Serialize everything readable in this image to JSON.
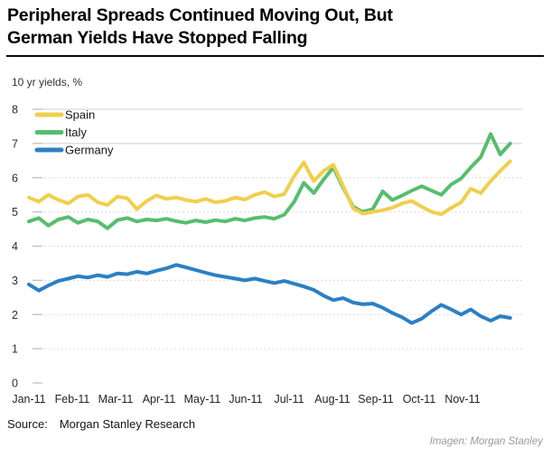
{
  "header": {
    "title_line1": "Peripheral Spreads Continued Moving Out, But",
    "title_line2": "German Yields Have Stopped Falling"
  },
  "chart_data": {
    "type": "line",
    "title": "Peripheral Spreads Continued Moving Out, But German Yields Have Stopped Falling",
    "ylabel": "10 yr yields, %",
    "xlabel": "",
    "ylim": [
      0,
      8
    ],
    "yticks": [
      0,
      1,
      2,
      3,
      4,
      5,
      6,
      7,
      8
    ],
    "grid": "horizontal, light gray, dotted (solid at 7 and 8)",
    "legend_position": "top-left",
    "x_tick_labels": [
      "Jan-11",
      "Feb-11",
      "Mar-11",
      "Apr-11",
      "May-11",
      "Jun-11",
      "Jul-11",
      "Aug-11",
      "Sep-11",
      "Oct-11",
      "Nov-11"
    ],
    "x_unit": "months since Jan-2011 tick",
    "x_months": [
      0,
      0.23,
      0.45,
      0.68,
      0.91,
      1.13,
      1.36,
      1.59,
      1.81,
      2.04,
      2.27,
      2.49,
      2.72,
      2.94,
      3.17,
      3.4,
      3.62,
      3.85,
      4.08,
      4.3,
      4.53,
      4.76,
      4.98,
      5.21,
      5.44,
      5.66,
      5.89,
      6.12,
      6.34,
      6.57,
      6.8,
      7.02,
      7.25,
      7.48,
      7.7,
      7.93,
      8.16,
      8.38,
      8.61,
      8.83,
      9.06,
      9.29,
      9.51,
      9.74,
      9.97,
      10.19,
      10.42,
      10.65,
      10.87,
      11.1
    ],
    "series": [
      {
        "name": "Spain",
        "color": "#F0CF4D",
        "values": [
          5.42,
          5.3,
          5.5,
          5.35,
          5.25,
          5.45,
          5.5,
          5.28,
          5.2,
          5.45,
          5.4,
          5.08,
          5.32,
          5.48,
          5.38,
          5.42,
          5.35,
          5.3,
          5.38,
          5.28,
          5.32,
          5.42,
          5.36,
          5.5,
          5.58,
          5.45,
          5.52,
          6.05,
          6.45,
          5.9,
          6.2,
          6.38,
          5.75,
          5.1,
          4.95,
          5.0,
          5.05,
          5.12,
          5.25,
          5.32,
          5.15,
          5.0,
          4.93,
          5.12,
          5.28,
          5.68,
          5.55,
          5.9,
          6.2,
          6.48
        ]
      },
      {
        "name": "Italy",
        "color": "#56BE6E",
        "values": [
          4.72,
          4.82,
          4.6,
          4.78,
          4.85,
          4.68,
          4.78,
          4.72,
          4.52,
          4.76,
          4.82,
          4.72,
          4.78,
          4.75,
          4.8,
          4.73,
          4.68,
          4.75,
          4.7,
          4.76,
          4.72,
          4.8,
          4.75,
          4.82,
          4.85,
          4.8,
          4.92,
          5.3,
          5.85,
          5.55,
          5.95,
          6.3,
          5.7,
          5.15,
          5.0,
          5.08,
          5.6,
          5.35,
          5.48,
          5.62,
          5.75,
          5.62,
          5.5,
          5.8,
          5.98,
          6.3,
          6.6,
          7.28,
          6.68,
          7.0
        ]
      },
      {
        "name": "Germany",
        "color": "#2B80C4",
        "values": [
          2.88,
          2.7,
          2.85,
          2.98,
          3.05,
          3.12,
          3.08,
          3.15,
          3.1,
          3.2,
          3.18,
          3.25,
          3.2,
          3.28,
          3.35,
          3.45,
          3.38,
          3.3,
          3.22,
          3.15,
          3.1,
          3.05,
          3.0,
          3.05,
          2.98,
          2.92,
          2.98,
          2.9,
          2.82,
          2.72,
          2.55,
          2.42,
          2.48,
          2.35,
          2.3,
          2.32,
          2.2,
          2.05,
          1.92,
          1.75,
          1.88,
          2.1,
          2.28,
          2.15,
          2.0,
          2.15,
          1.95,
          1.82,
          1.95,
          1.9
        ]
      }
    ]
  },
  "footer": {
    "source_label": "Source:",
    "source_text": "Morgan Stanley Research",
    "credit": "Imagen: Morgan Stanley"
  }
}
